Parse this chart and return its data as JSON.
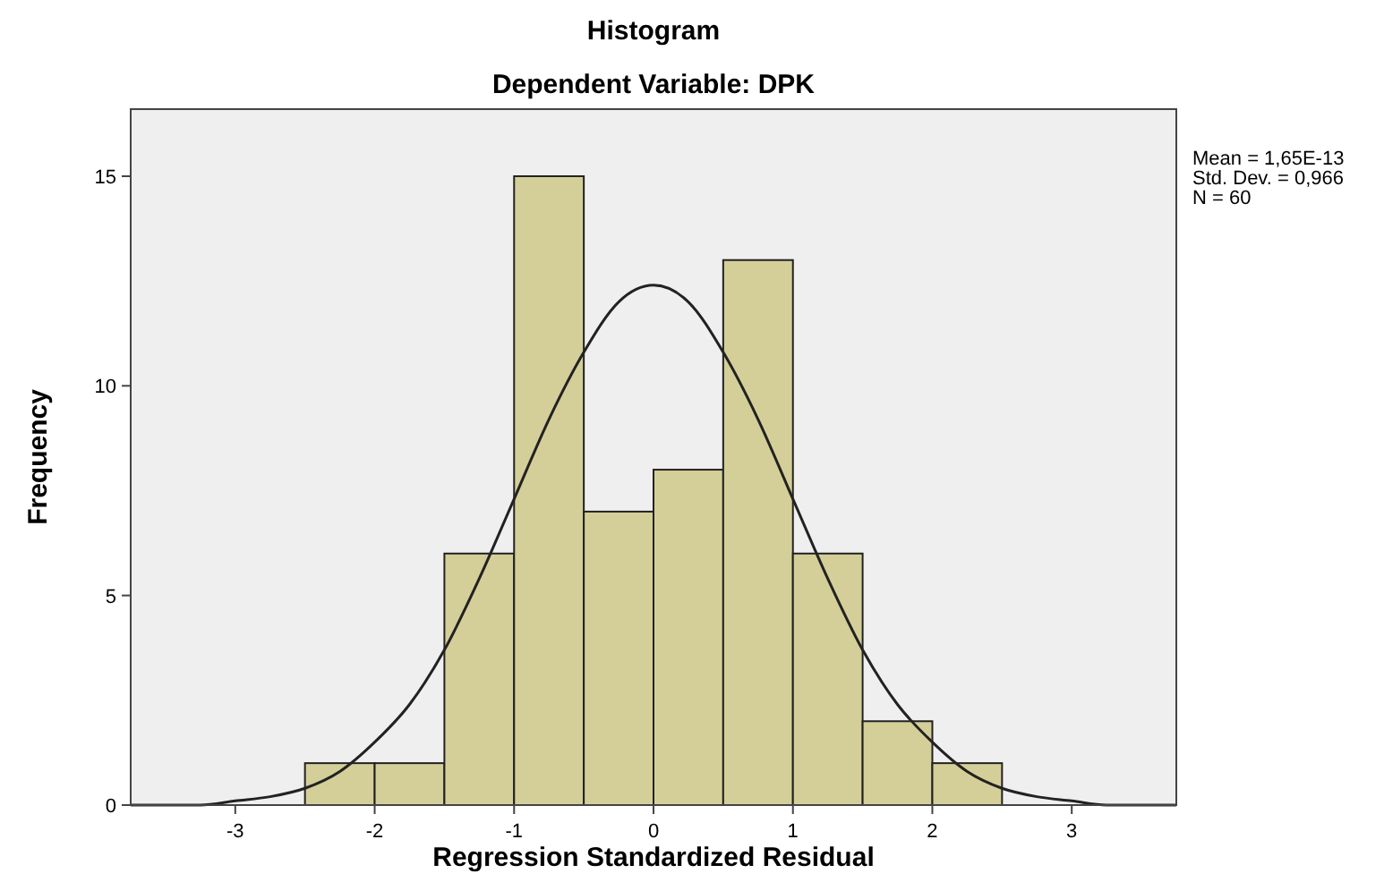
{
  "chart_data": {
    "type": "histogram",
    "title": "Histogram",
    "subtitle": "Dependent Variable: DPK",
    "xlabel": "Regression Standardized Residual",
    "ylabel": "Frequency",
    "bins": [
      -2.5,
      -2,
      -1.5,
      -1,
      -0.5,
      0,
      0.5,
      1,
      1.5,
      2,
      2.5
    ],
    "values": [
      1,
      1,
      6,
      15,
      7,
      8,
      13,
      6,
      2,
      1
    ],
    "color": "#d4cf98",
    "series": [
      {
        "type": "line",
        "color": "#222222",
        "x": [
          -3.75,
          -3.5,
          -3.25,
          -3,
          -2.75,
          -2.5,
          -2.25,
          -2,
          -1.75,
          -1.5,
          -1.25,
          -1,
          -0.75,
          -0.5,
          -0.25,
          0,
          0.25,
          0.5,
          0.75,
          1,
          1.25,
          1.5,
          1.75,
          2,
          2.25,
          2.5,
          2.75,
          3,
          3.25,
          3.5,
          3.75
        ],
        "values": [
          0,
          0,
          0,
          0.1,
          0.2,
          0.4,
          0.8,
          1.5,
          2.4,
          3.7,
          5.4,
          7.3,
          9.2,
          10.8,
          12,
          12.4,
          12,
          10.8,
          9.2,
          7.3,
          5.4,
          3.7,
          2.4,
          1.5,
          0.8,
          0.4,
          0.2,
          0.1,
          0,
          0,
          0
        ]
      }
    ],
    "xlim": [
      -3.75,
      3.75
    ],
    "ylim": [
      0,
      16.6
    ],
    "xticks": [
      -3,
      -2,
      -1,
      0,
      1,
      2,
      3
    ],
    "yticks": [
      0,
      5,
      10,
      15
    ],
    "annotations": [
      "Mean = 1,65E-13",
      "Std. Dev. = 0,966",
      "N = 60"
    ],
    "grid": false,
    "line_style": "solid",
    "marker": "none"
  }
}
